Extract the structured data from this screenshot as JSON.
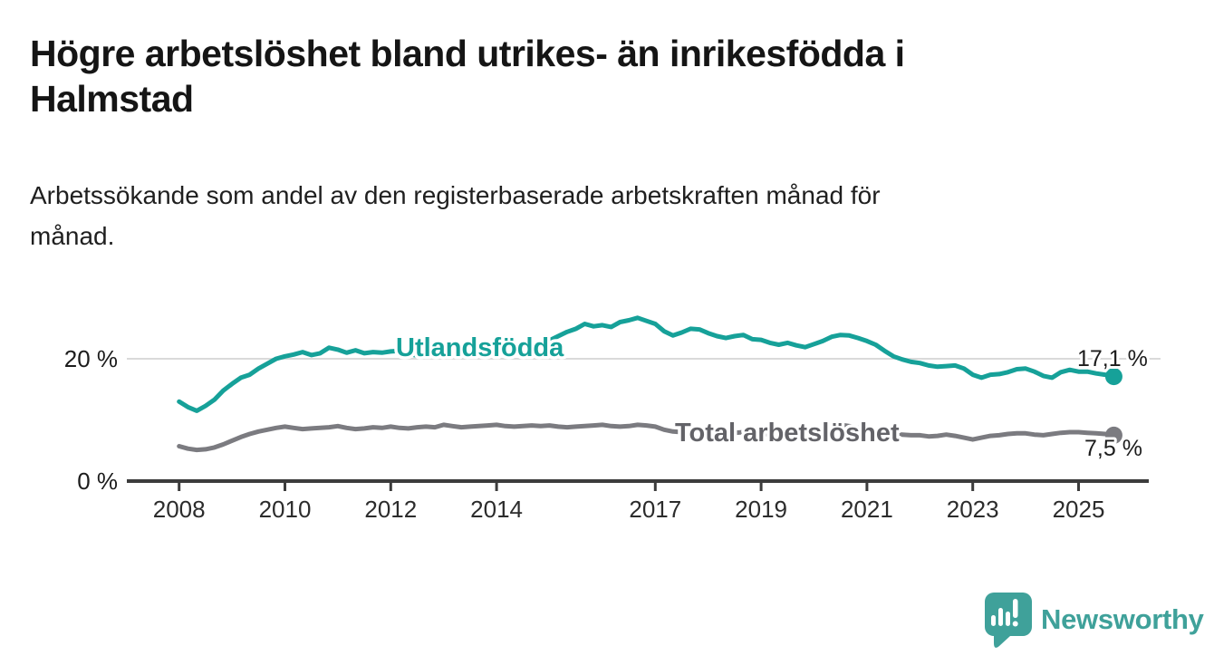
{
  "header": {
    "title_lines": [
      "Högre arbetslöshet bland utrikes- än inrikesfödda i",
      "Halmstad"
    ],
    "subtitle_lines": [
      "Arbetssökande som andel av den registerbaserade arbetskraften månad för",
      "månad."
    ]
  },
  "chart_data": {
    "type": "line",
    "title": "Högre arbetslöshet bland utrikes- än inrikesfödda i Halmstad",
    "subtitle": "Arbetssökande som andel av den registerbaserade arbetskraften månad för månad.",
    "unit": "%",
    "x_start": "2008-01",
    "x_end": "2025-08",
    "x_interval_months": 2,
    "x_axis": {
      "tick_years": [
        2008,
        2010,
        2012,
        2014,
        2017,
        2019,
        2021,
        2023,
        2025
      ]
    },
    "y_axis": {
      "min": 0,
      "max": 28,
      "grid": true,
      "ticks": [
        {
          "value": 20,
          "label": "20 %"
        },
        {
          "value": 0,
          "label": "0 %"
        }
      ]
    },
    "series": [
      {
        "name": "Utlandsfödda",
        "color": "#16a199",
        "label_color": "#16a199",
        "end_label": "17,1 %",
        "end_value": 17.1,
        "values": [
          13.0,
          12.1,
          11.5,
          12.3,
          13.3,
          14.8,
          15.9,
          16.9,
          17.4,
          18.4,
          19.2,
          20.0,
          20.4,
          20.7,
          21.1,
          20.6,
          20.9,
          21.8,
          21.5,
          21.0,
          21.4,
          20.9,
          21.1,
          21.0,
          21.2,
          21.3,
          20.8,
          20.5,
          21.0,
          20.7,
          21.2,
          20.9,
          20.7,
          21.0,
          21.3,
          21.1,
          21.2,
          21.0,
          21.2,
          21.5,
          21.9,
          22.5,
          23.0,
          23.7,
          24.4,
          24.9,
          25.7,
          25.3,
          25.5,
          25.2,
          26.0,
          26.3,
          26.7,
          26.2,
          25.7,
          24.5,
          23.8,
          24.3,
          24.9,
          24.8,
          24.2,
          23.7,
          23.4,
          23.7,
          23.9,
          23.2,
          23.1,
          22.6,
          22.3,
          22.6,
          22.2,
          21.9,
          22.4,
          22.9,
          23.6,
          23.9,
          23.8,
          23.4,
          22.9,
          22.3,
          21.3,
          20.4,
          19.9,
          19.5,
          19.3,
          18.9,
          18.7,
          18.8,
          18.9,
          18.4,
          17.4,
          16.9,
          17.4,
          17.5,
          17.8,
          18.3,
          18.4,
          17.9,
          17.2,
          16.9,
          17.8,
          18.2,
          17.9,
          17.9,
          17.6,
          17.4,
          17.1
        ]
      },
      {
        "name": "Total arbetslöshet",
        "color": "#7b7b80",
        "label_color": "#636368",
        "end_label": "7,5 %",
        "end_value": 7.5,
        "values": [
          5.7,
          5.3,
          5.1,
          5.2,
          5.5,
          6.0,
          6.6,
          7.2,
          7.7,
          8.1,
          8.4,
          8.7,
          8.9,
          8.7,
          8.5,
          8.6,
          8.7,
          8.8,
          9.0,
          8.7,
          8.5,
          8.6,
          8.8,
          8.7,
          8.9,
          8.7,
          8.6,
          8.8,
          8.9,
          8.8,
          9.2,
          9.0,
          8.8,
          8.9,
          9.0,
          9.1,
          9.2,
          9.0,
          8.9,
          9.0,
          9.1,
          9.0,
          9.1,
          8.9,
          8.8,
          8.9,
          9.0,
          9.1,
          9.2,
          9.0,
          8.9,
          9.0,
          9.2,
          9.1,
          8.9,
          8.4,
          8.1,
          8.0,
          8.1,
          8.2,
          8.1,
          7.9,
          7.8,
          7.9,
          8.0,
          7.9,
          7.8,
          7.6,
          7.5,
          7.6,
          7.7,
          7.8,
          8.0,
          8.5,
          9.0,
          9.2,
          9.0,
          8.7,
          8.4,
          8.1,
          7.9,
          7.7,
          7.6,
          7.5,
          7.5,
          7.3,
          7.4,
          7.6,
          7.4,
          7.1,
          6.8,
          7.1,
          7.4,
          7.5,
          7.7,
          7.8,
          7.8,
          7.6,
          7.5,
          7.7,
          7.9,
          8.0,
          8.0,
          7.9,
          7.8,
          7.7,
          7.5
        ]
      }
    ],
    "legend_position": "inline-labels",
    "colors": {
      "grid": "#dadada",
      "axis": "#3c3c3c",
      "tick_label": "#2c2c2c",
      "value_label": "#1c1c1c",
      "background": "#ffffff"
    }
  },
  "footer": {
    "brand": "Newsworthy",
    "brand_color": "#3fa19a",
    "logo_icon": "speech-bubble-bar-chart"
  }
}
